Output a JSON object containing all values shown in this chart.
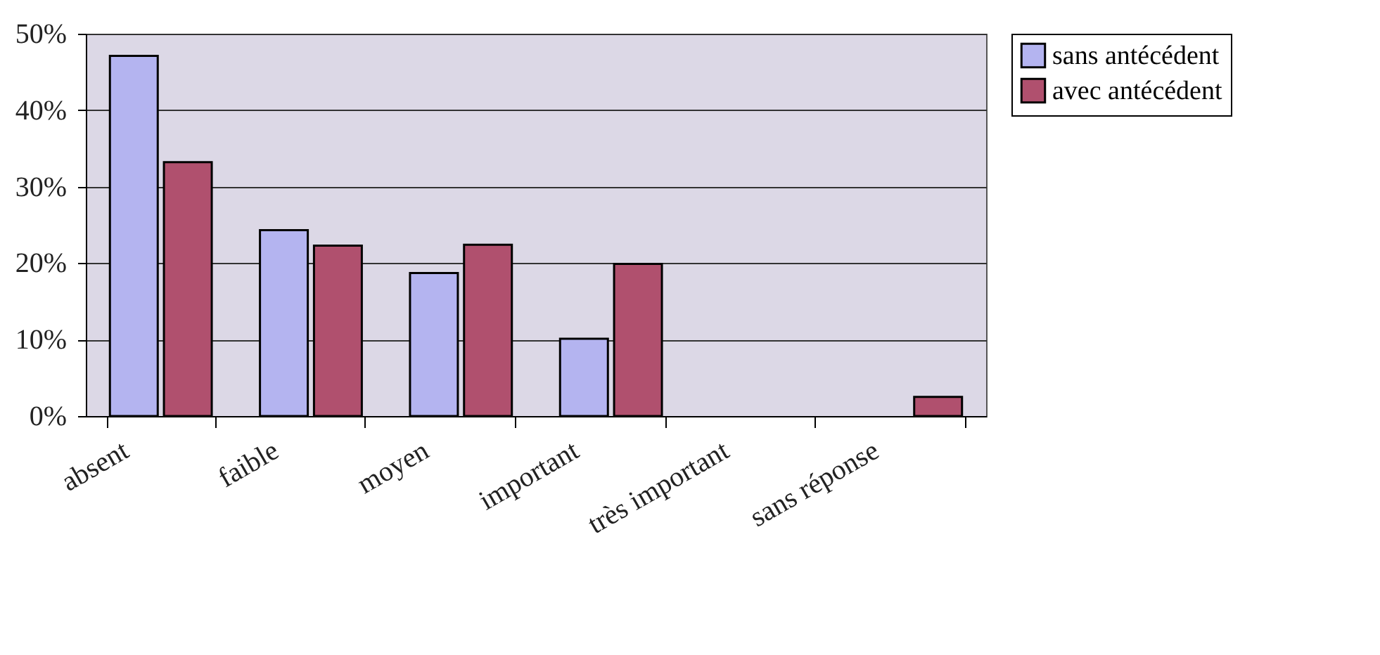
{
  "chart_data": {
    "type": "bar",
    "categories": [
      "absent",
      "faible",
      "moyen",
      "important",
      "très important",
      "sans réponse"
    ],
    "series": [
      {
        "name": "sans antécédent",
        "color": "#b4b4f0",
        "values": [
          47.1,
          24.3,
          18.7,
          10.1,
          null,
          null
        ]
      },
      {
        "name": "avec antécédent",
        "color": "#b0506e",
        "values": [
          33.2,
          22.3,
          22.4,
          19.9,
          null,
          2.5
        ]
      }
    ],
    "ylim": [
      0,
      50
    ],
    "yticks": [
      {
        "value": 0,
        "label": "0%"
      },
      {
        "value": 10,
        "label": "10%"
      },
      {
        "value": 20,
        "label": "20%"
      },
      {
        "value": 30,
        "label": "30%"
      },
      {
        "value": 40,
        "label": "40%"
      },
      {
        "value": 50,
        "label": "50%"
      }
    ],
    "grid": "y",
    "legend": "right"
  }
}
